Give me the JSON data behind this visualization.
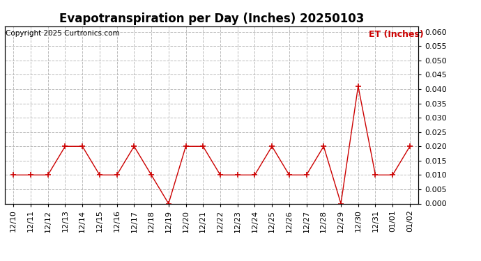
{
  "title": "Evapotranspiration per Day (Inches) 20250103",
  "copyright_text": "Copyright 2025 Curtronics.com",
  "legend_label": "ET (Inches)",
  "dates": [
    "12/10",
    "12/11",
    "12/12",
    "12/13",
    "12/14",
    "12/15",
    "12/16",
    "12/17",
    "12/18",
    "12/19",
    "12/20",
    "12/21",
    "12/22",
    "12/23",
    "12/24",
    "12/25",
    "12/26",
    "12/27",
    "12/28",
    "12/29",
    "12/30",
    "12/31",
    "01/01",
    "01/02"
  ],
  "values": [
    0.01,
    0.01,
    0.01,
    0.02,
    0.02,
    0.01,
    0.01,
    0.02,
    0.01,
    0.0,
    0.02,
    0.02,
    0.01,
    0.01,
    0.01,
    0.02,
    0.01,
    0.01,
    0.02,
    0.0,
    0.041,
    0.01,
    0.01,
    0.02
  ],
  "line_color": "#cc0000",
  "marker": "+",
  "marker_size": 6,
  "line_width": 1.0,
  "ylim": [
    0.0,
    0.062
  ],
  "yticks": [
    0.0,
    0.005,
    0.01,
    0.015,
    0.02,
    0.025,
    0.03,
    0.035,
    0.04,
    0.045,
    0.05,
    0.055,
    0.06
  ],
  "grid_color": "#bbbbbb",
  "grid_style": "--",
  "background_color": "#ffffff",
  "title_fontsize": 12,
  "copyright_fontsize": 7.5,
  "legend_fontsize": 9,
  "tick_fontsize": 8
}
